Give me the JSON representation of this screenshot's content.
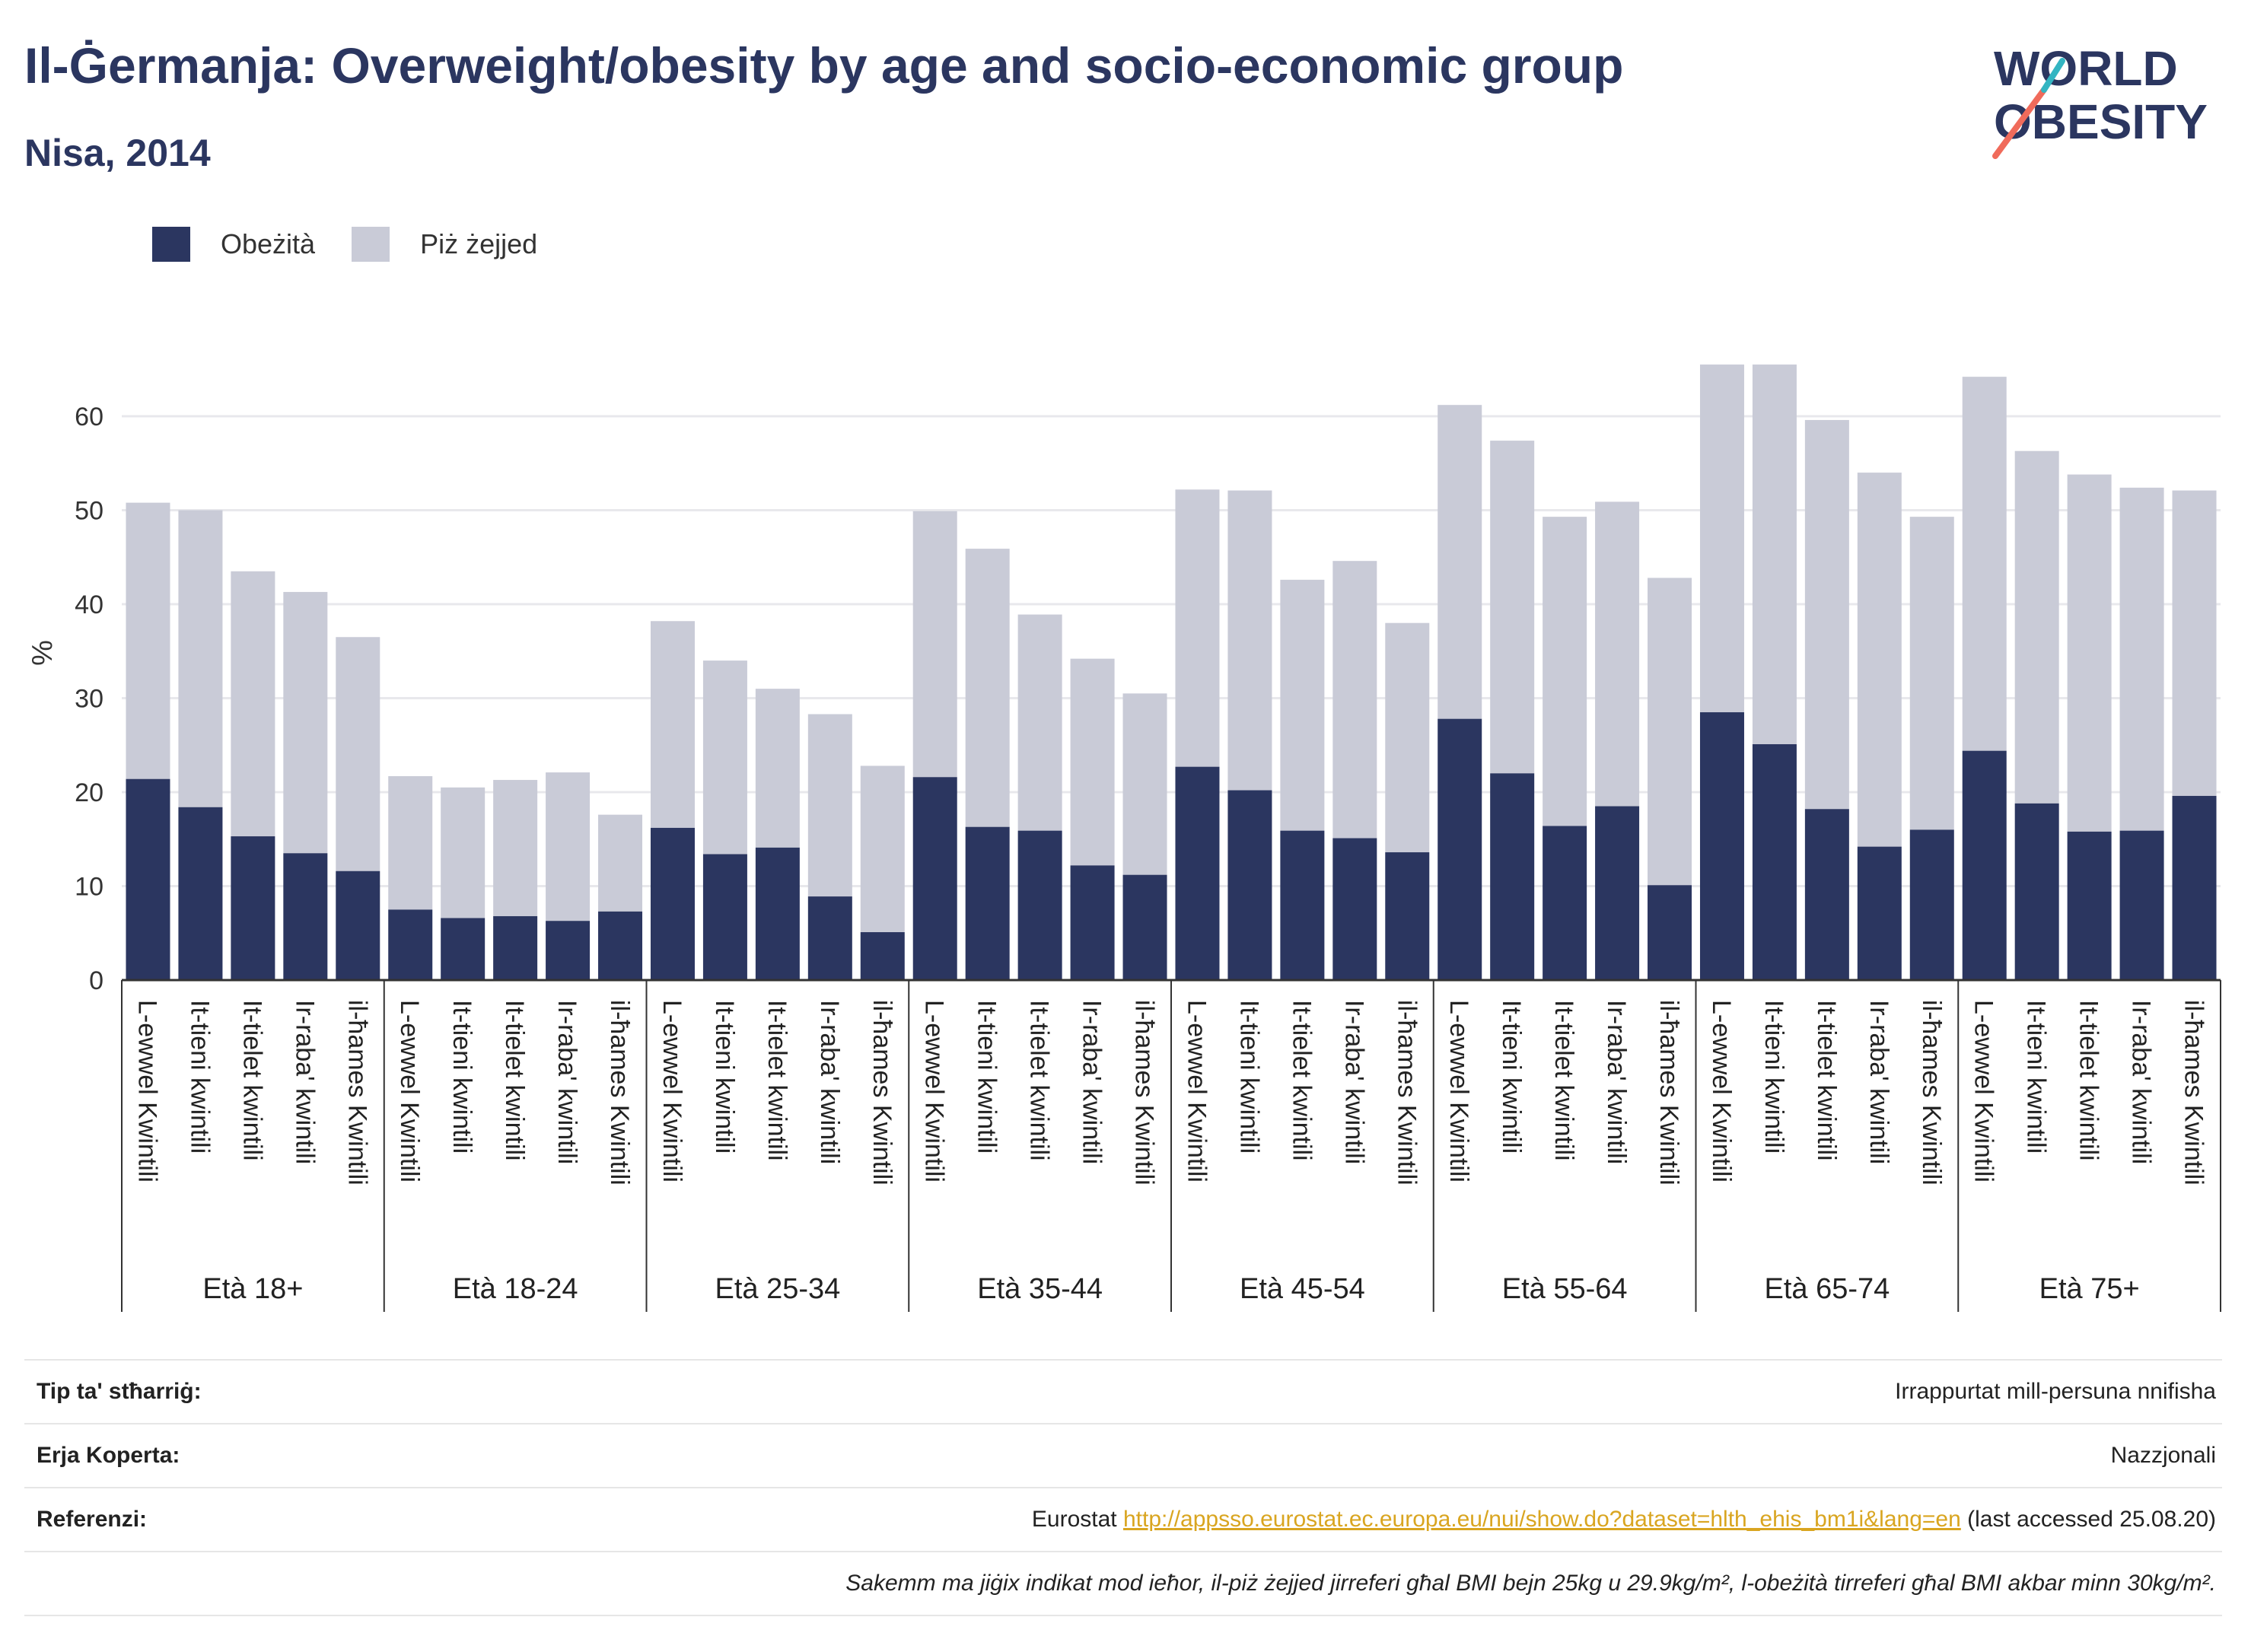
{
  "header": {
    "title": "Il-Ġermanja: Overweight/obesity by age and socio-economic group",
    "subtitle": "Nisa, 2014"
  },
  "logo": {
    "line1": "WORLD",
    "line2": "OBESITY"
  },
  "colors": {
    "obese": "#2b3660",
    "overweight": "#c9cbd7",
    "text": "#2b3660",
    "accent1": "#f06b5b",
    "accent2": "#33b5c2",
    "link": "#d9a520"
  },
  "chart_data": {
    "type": "bar",
    "stacked": true,
    "ylabel": "%",
    "ylim": [
      0,
      70
    ],
    "yticks": [
      0,
      10,
      20,
      30,
      40,
      50,
      60
    ],
    "grid": true,
    "legend_position": "top-left",
    "groups": [
      "Età 18+",
      "Età 18-24",
      "Età 25-34",
      "Età 35-44",
      "Età 45-54",
      "Età 55-64",
      "Età 65-74",
      "Età 75+"
    ],
    "group_categories": [
      [
        "L-ewwel Kwintili",
        "It-tieni kwintili",
        "It-tielet kwintili",
        "Ir-raba' kwintili",
        "il-ħames Kwintili"
      ],
      [
        "L-ewwel Kwintili",
        "It-tieni kwintili",
        "It-tielet kwintili",
        "Ir-raba' kwintili",
        "il-ħames Kwintili"
      ],
      [
        "L-ewwel Kwintili",
        "It-tieni kwintili",
        "It-tielet kwintili",
        "Ir-raba' kwintili",
        "il-ħames Kwintili"
      ],
      [
        "L-ewwel Kwintili",
        "It-tieni kwintili",
        "It-tielet kwintili",
        "Ir-raba' kwintili",
        "il-ħames Kwintili"
      ],
      [
        "L-ewwel Kwintili",
        "It-tieni kwintili",
        "It-tielet kwintili",
        "Ir-raba' kwintili",
        "il-ħames Kwintili"
      ],
      [
        "L-ewwel Kwintili",
        "It-tieni kwintili",
        "It-tielet kwintili",
        "Ir-raba' kwintili",
        "il-ħames Kwintili"
      ],
      [
        "L-ewwel Kwintili",
        "It-tieni kwintili",
        "It-tielet kwintili",
        "Ir-raba' kwintili",
        "il-ħames Kwintili"
      ],
      [
        "L-ewwel Kwintili",
        "It-tieni kwintili",
        "It-tielet kwintili",
        "Ir-raba' kwintili",
        "il-ħames Kwintili"
      ]
    ],
    "series": [
      {
        "name": "Obeżità",
        "values": [
          21.4,
          18.4,
          15.3,
          13.5,
          11.6,
          7.5,
          6.6,
          6.8,
          6.3,
          7.3,
          16.2,
          13.4,
          14.1,
          8.9,
          5.1,
          21.6,
          16.3,
          15.9,
          12.2,
          11.2,
          22.7,
          20.2,
          15.9,
          15.1,
          13.6,
          27.8,
          22.0,
          16.4,
          18.5,
          10.1,
          28.5,
          25.1,
          18.2,
          14.2,
          16.0,
          24.4,
          18.8,
          15.8,
          15.9,
          19.6
        ]
      },
      {
        "name": "Piż żejjed",
        "values": [
          29.4,
          31.6,
          28.2,
          27.8,
          24.9,
          14.2,
          13.9,
          14.5,
          15.8,
          10.3,
          22.0,
          20.6,
          16.9,
          19.4,
          17.7,
          28.3,
          29.6,
          23.0,
          22.0,
          19.3,
          29.5,
          31.9,
          26.7,
          29.5,
          24.4,
          33.4,
          35.4,
          32.9,
          32.4,
          32.7,
          37.0,
          40.4,
          41.4,
          39.8,
          33.3,
          39.8,
          37.5,
          38.0,
          36.5,
          32.5
        ]
      }
    ]
  },
  "footer": {
    "rows": [
      {
        "label": "Tip ta' stħarriġ:",
        "value": "Irrappurtat mill-persuna nnifisha"
      },
      {
        "label": "Erja Koperta:",
        "value": "Nazzjonali"
      }
    ],
    "reference": {
      "label": "Referenzi:",
      "prefix": "Eurostat",
      "url": "http://appsso.eurostat.ec.europa.eu/nui/show.do?dataset=hlth_ehis_bm1i&lang=en",
      "suffix": "(last accessed 25.08.20)"
    },
    "note": "Sakemm ma jiġix indikat mod ieħor, il-piż żejjed jirreferi għal BMI bejn 25kg u 29.9kg/m², l-obeżità tirreferi għal BMI akbar minn 30kg/m²."
  }
}
